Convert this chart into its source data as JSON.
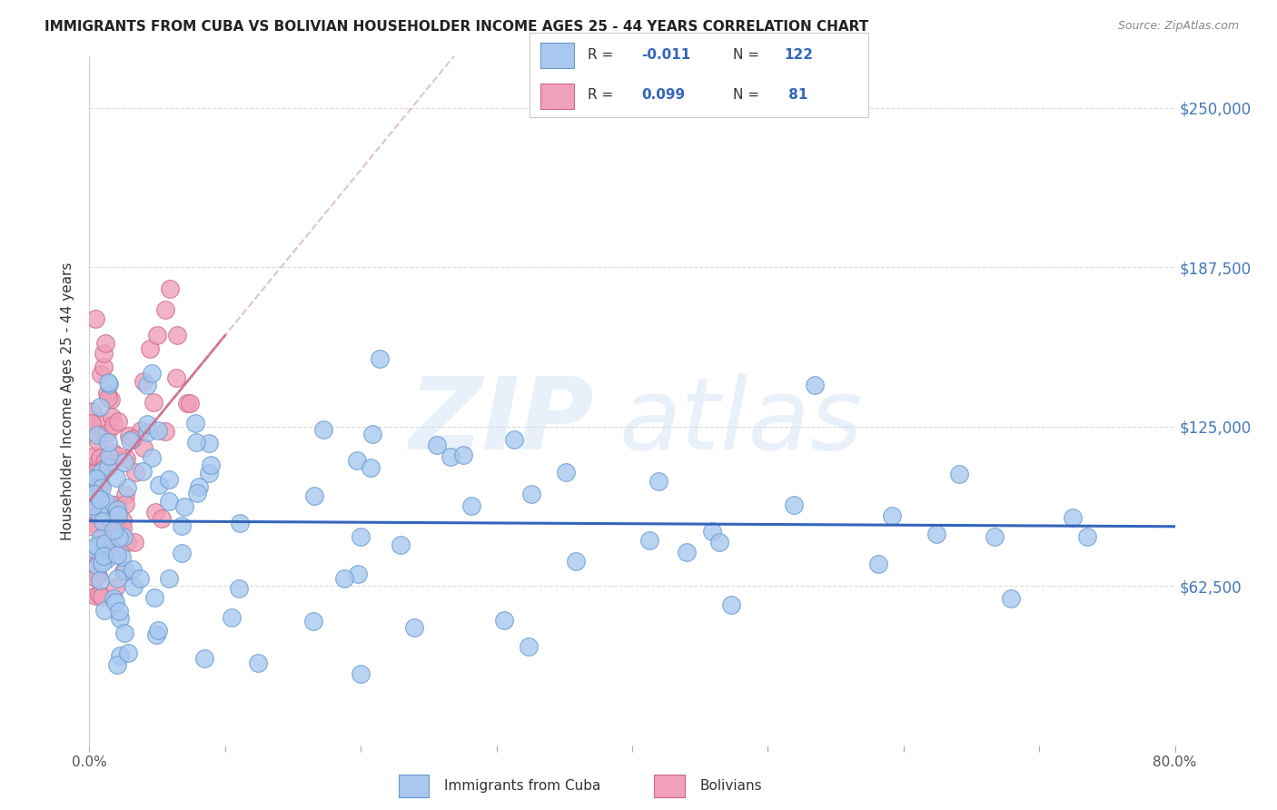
{
  "title": "IMMIGRANTS FROM CUBA VS BOLIVIAN HOUSEHOLDER INCOME AGES 25 - 44 YEARS CORRELATION CHART",
  "source": "Source: ZipAtlas.com",
  "ylabel": "Householder Income Ages 25 - 44 years",
  "ytick_labels": [
    "$62,500",
    "$125,000",
    "$187,500",
    "$250,000"
  ],
  "ytick_values": [
    62500,
    125000,
    187500,
    250000
  ],
  "ymin": 0,
  "ymax": 270000,
  "xmin": 0.0,
  "xmax": 0.8,
  "cuba_color": "#a8c8f0",
  "cuba_edge_color": "#6699cc",
  "bolivia_color": "#f0a0b8",
  "bolivia_edge_color": "#cc6688",
  "cuba_line_color": "#3366bb",
  "bolivia_line_color": "#ddaaaa",
  "legend_R_cuba": "-0.011",
  "legend_N_cuba": "122",
  "legend_R_bolivia": "0.099",
  "legend_N_bolivia": " 81",
  "background_color": "#ffffff",
  "grid_color": "#cccccc",
  "title_color": "#222222",
  "source_color": "#888888",
  "label_color": "#4477bb",
  "text_color": "#333333"
}
